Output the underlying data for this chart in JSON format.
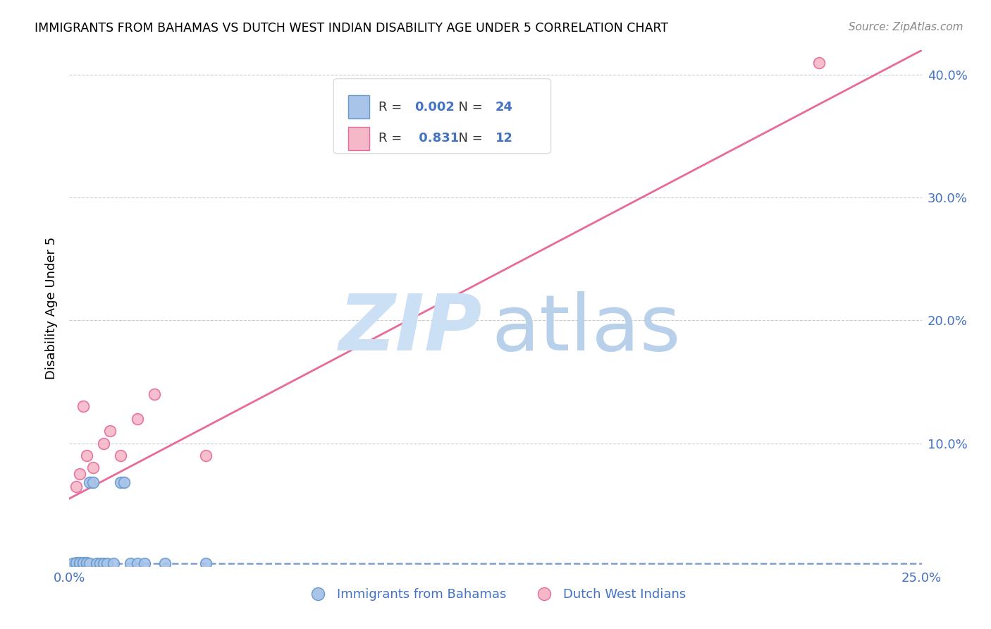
{
  "title": "IMMIGRANTS FROM BAHAMAS VS DUTCH WEST INDIAN DISABILITY AGE UNDER 5 CORRELATION CHART",
  "source": "Source: ZipAtlas.com",
  "ylabel": "Disability Age Under 5",
  "xlim": [
    0.0,
    0.25
  ],
  "ylim": [
    0.0,
    0.42
  ],
  "xtick_vals": [
    0.0,
    0.05,
    0.1,
    0.15,
    0.2,
    0.25
  ],
  "xtick_labels": [
    "0.0%",
    "",
    "",
    "",
    "",
    "25.0%"
  ],
  "ytick_right_vals": [
    0.0,
    0.1,
    0.2,
    0.3,
    0.4
  ],
  "ytick_right_labels": [
    "",
    "10.0%",
    "20.0%",
    "30.0%",
    "40.0%"
  ],
  "background_color": "#ffffff",
  "grid_color": "#cccccc",
  "tick_label_color": "#4472c4",
  "bahamas_face": "#a8c4e8",
  "bahamas_edge": "#6699cc",
  "dutch_face": "#f4b8c8",
  "dutch_edge": "#e8699a",
  "bahamas_trend_color": "#4472c4",
  "dutch_trend_color": "#e8699a",
  "bahamas_R": "0.002",
  "bahamas_N": "24",
  "dutch_R": "0.831",
  "dutch_N": "12",
  "marker_size": 130,
  "bahamas_x": [
    0.001,
    0.002,
    0.002,
    0.003,
    0.003,
    0.004,
    0.004,
    0.005,
    0.005,
    0.006,
    0.006,
    0.007,
    0.008,
    0.009,
    0.01,
    0.011,
    0.013,
    0.015,
    0.016,
    0.018,
    0.02,
    0.022,
    0.028,
    0.04
  ],
  "bahamas_y": [
    0.002,
    0.002,
    0.003,
    0.002,
    0.003,
    0.002,
    0.003,
    0.002,
    0.003,
    0.002,
    0.068,
    0.068,
    0.002,
    0.002,
    0.002,
    0.002,
    0.002,
    0.068,
    0.068,
    0.002,
    0.002,
    0.002,
    0.002,
    0.002
  ],
  "dutch_x": [
    0.002,
    0.003,
    0.004,
    0.005,
    0.007,
    0.01,
    0.012,
    0.015,
    0.02,
    0.025,
    0.04,
    0.22
  ],
  "dutch_y": [
    0.065,
    0.075,
    0.13,
    0.09,
    0.08,
    0.1,
    0.11,
    0.09,
    0.12,
    0.14,
    0.09,
    0.41
  ],
  "watermark_zip_color": "#cce0f5",
  "watermark_atlas_color": "#b8d0ea"
}
